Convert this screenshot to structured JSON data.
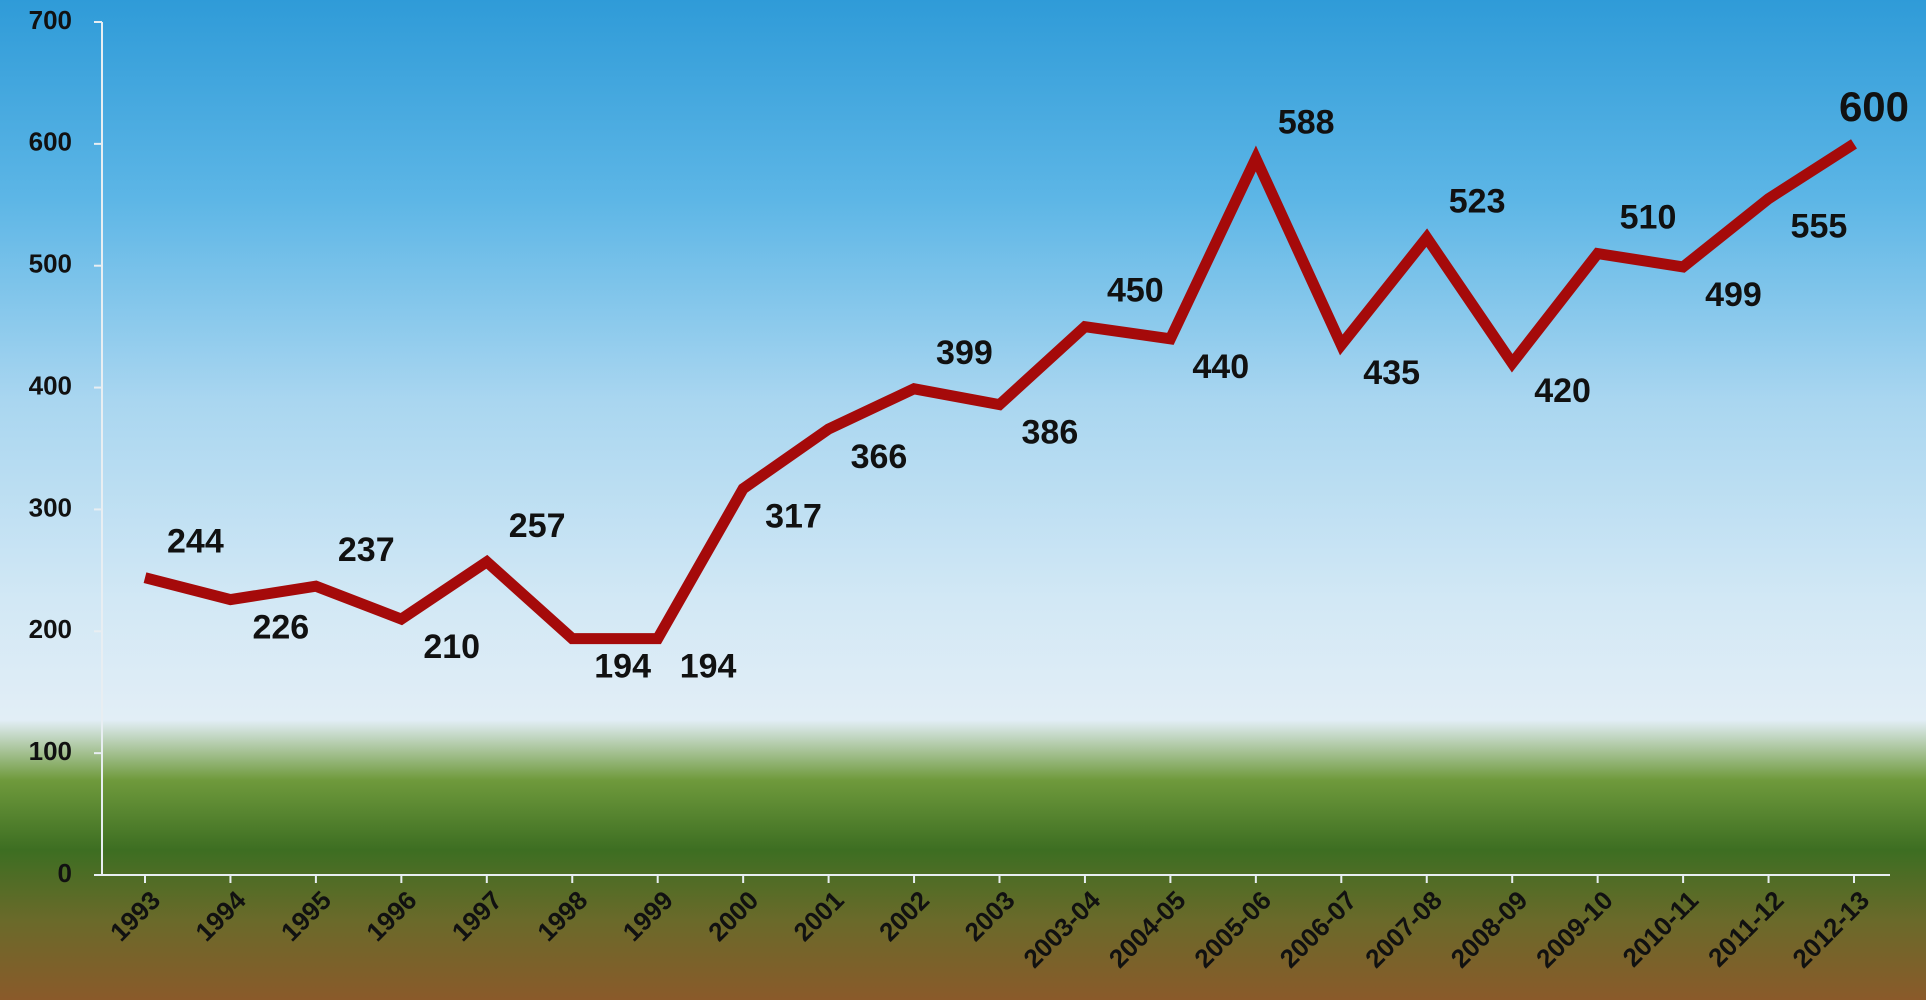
{
  "chart_data": {
    "type": "line",
    "categories": [
      "1993",
      "1994",
      "1995",
      "1996",
      "1997",
      "1998",
      "1999",
      "2000",
      "2001",
      "2002",
      "2003",
      "2003-04",
      "2004-05",
      "2005-06",
      "2006-07",
      "2007-08",
      "2008-09",
      "2009-10",
      "2010-11",
      "2011-12",
      "2012-13"
    ],
    "series": [
      {
        "color": "#a50a0a",
        "values": [
          244,
          226,
          237,
          210,
          257,
          194,
          194,
          317,
          366,
          399,
          386,
          450,
          440,
          588,
          435,
          523,
          420,
          510,
          499,
          555,
          600
        ],
        "label_colors": [
          "#111",
          "#111",
          "#111",
          "#111",
          "#111",
          "#111",
          "#111",
          "#111",
          "#111",
          "#111",
          "#111",
          "#111",
          "#111",
          "#111",
          "#111",
          "#111",
          "#111",
          "#111",
          "#111",
          "#111",
          "#e01010"
        ]
      }
    ],
    "ylim": [
      0,
      700
    ],
    "yticks": [
      0,
      100,
      200,
      300,
      400,
      500,
      600,
      700
    ],
    "grid": false
  }
}
